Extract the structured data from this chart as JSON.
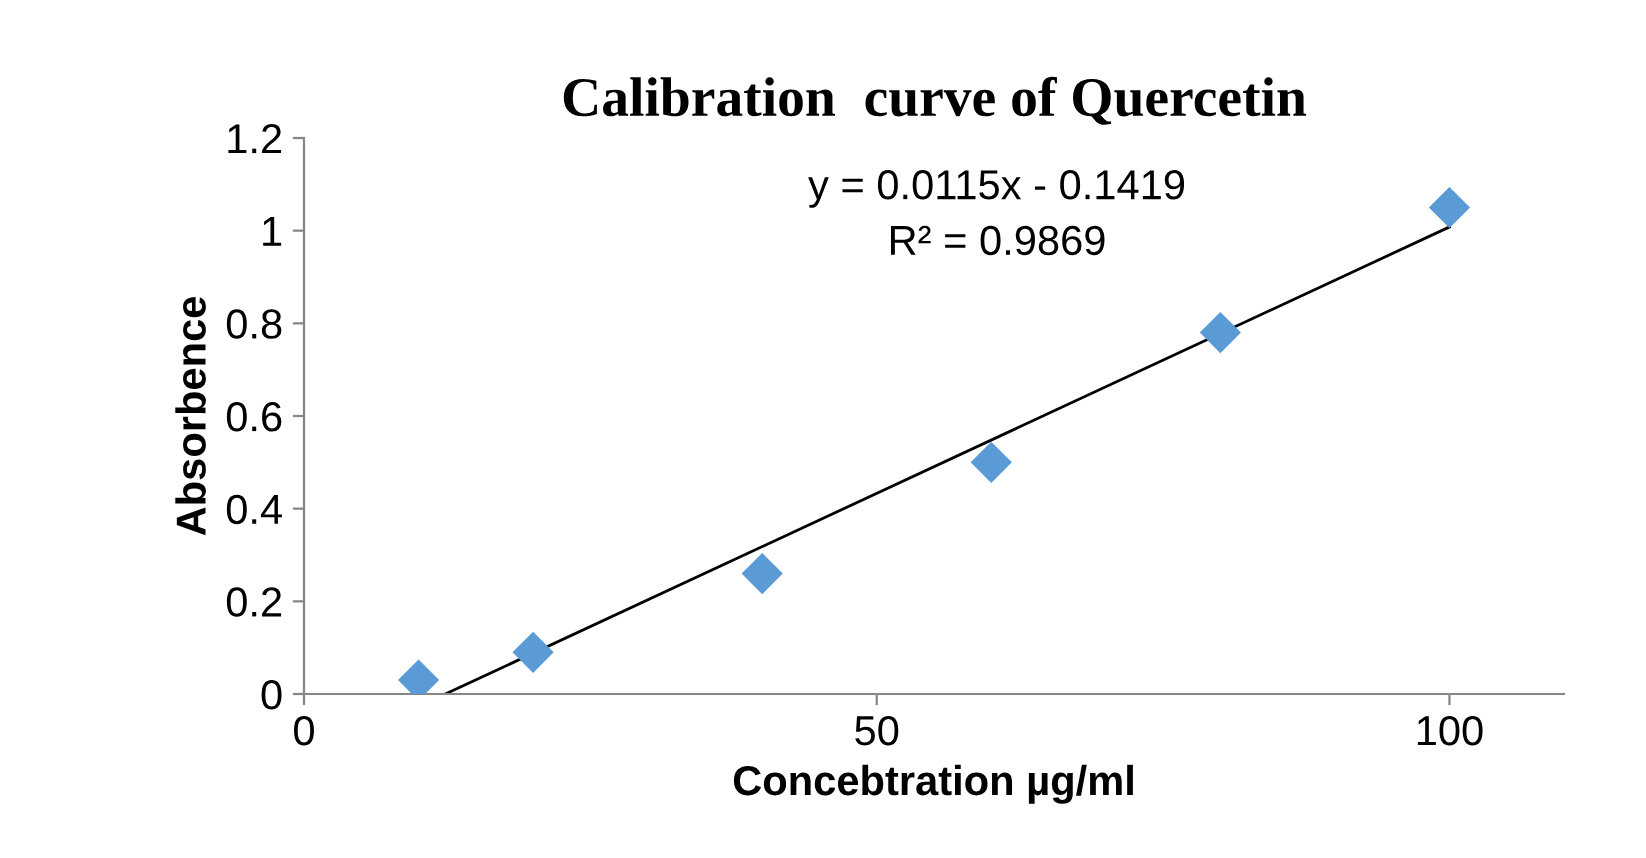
{
  "chart_data": {
    "type": "scatter",
    "title": "Calibration  curve of Quercetin",
    "xlabel": "Concebtration µg/ml",
    "ylabel": "Absorbence",
    "x": [
      10,
      20,
      40,
      60,
      80,
      100
    ],
    "series": [
      {
        "color": "#5b9bd5",
        "values": [
          0.03,
          0.09,
          0.26,
          0.5,
          0.78,
          1.05
        ],
        "marker": "diamond"
      },
      {
        "type": "line",
        "color": "#000000",
        "x": [
          12.34,
          100
        ],
        "values": [
          0,
          1.008
        ],
        "marker": "none",
        "line_style": "solid"
      }
    ],
    "xlim": [
      0,
      110
    ],
    "xticks": [
      0,
      50,
      100
    ],
    "ylim": [
      0,
      1.2
    ],
    "yticks": [
      0,
      0.2,
      0.4,
      0.6,
      0.8,
      1,
      1.2
    ],
    "annotations": [
      "y = 0.0115x - 0.1419",
      "R² = 0.9869"
    ],
    "grid": false,
    "legend": false
  }
}
